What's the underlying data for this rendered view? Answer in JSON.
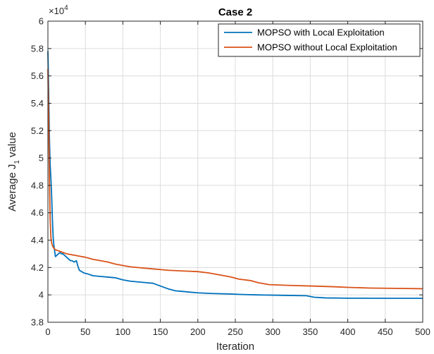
{
  "chart_data": {
    "type": "line",
    "title": "Case 2",
    "xlabel": "Iteration",
    "ylabel_main": "Average J",
    "ylabel_sub": "1",
    "ylabel_tail": " value",
    "y_exponent_base": "×10",
    "y_exponent_power": "4",
    "xlim": [
      0,
      500
    ],
    "ylim": [
      3.8,
      6.0
    ],
    "x_ticks": [
      0,
      50,
      100,
      150,
      200,
      250,
      300,
      350,
      400,
      450,
      500
    ],
    "x_tick_labels": [
      "0",
      "50",
      "100",
      "150",
      "200",
      "250",
      "300",
      "350",
      "400",
      "450",
      "500"
    ],
    "y_ticks": [
      3.8,
      4.0,
      4.2,
      4.4,
      4.6,
      4.8,
      5.0,
      5.2,
      5.4,
      5.6,
      5.8,
      6.0
    ],
    "y_tick_labels": [
      "3.8",
      "4",
      "4.2",
      "4.4",
      "4.6",
      "4.8",
      "5",
      "5.2",
      "5.4",
      "5.6",
      "5.8",
      "6"
    ],
    "grid": true,
    "legend_position": "top-right",
    "series": [
      {
        "name": "MOPSO with Local Exploitation",
        "color": "#0072BD",
        "points": [
          [
            0,
            5.78
          ],
          [
            1,
            5.5
          ],
          [
            2,
            5.15
          ],
          [
            3,
            4.95
          ],
          [
            4,
            4.85
          ],
          [
            5,
            4.72
          ],
          [
            6,
            4.55
          ],
          [
            7,
            4.42
          ],
          [
            8,
            4.36
          ],
          [
            9,
            4.32
          ],
          [
            10,
            4.28
          ],
          [
            12,
            4.29
          ],
          [
            14,
            4.3
          ],
          [
            16,
            4.31
          ],
          [
            18,
            4.3
          ],
          [
            20,
            4.3
          ],
          [
            22,
            4.29
          ],
          [
            24,
            4.28
          ],
          [
            26,
            4.27
          ],
          [
            28,
            4.26
          ],
          [
            30,
            4.25
          ],
          [
            32,
            4.25
          ],
          [
            35,
            4.24
          ],
          [
            38,
            4.25
          ],
          [
            40,
            4.21
          ],
          [
            42,
            4.18
          ],
          [
            45,
            4.17
          ],
          [
            48,
            4.16
          ],
          [
            52,
            4.155
          ],
          [
            55,
            4.15
          ],
          [
            60,
            4.14
          ],
          [
            70,
            4.135
          ],
          [
            80,
            4.13
          ],
          [
            90,
            4.125
          ],
          [
            100,
            4.11
          ],
          [
            110,
            4.1
          ],
          [
            120,
            4.095
          ],
          [
            130,
            4.09
          ],
          [
            140,
            4.085
          ],
          [
            150,
            4.065
          ],
          [
            160,
            4.045
          ],
          [
            170,
            4.03
          ],
          [
            180,
            4.025
          ],
          [
            190,
            4.02
          ],
          [
            200,
            4.015
          ],
          [
            220,
            4.01
          ],
          [
            240,
            4.007
          ],
          [
            260,
            4.003
          ],
          [
            280,
            4.0
          ],
          [
            300,
            3.998
          ],
          [
            320,
            3.996
          ],
          [
            345,
            3.994
          ],
          [
            355,
            3.983
          ],
          [
            370,
            3.978
          ],
          [
            400,
            3.976
          ],
          [
            450,
            3.975
          ],
          [
            500,
            3.975
          ]
        ]
      },
      {
        "name": "MOPSO without Local Exploitation",
        "color": "#D95319",
        "points": [
          [
            0,
            5.65
          ],
          [
            1,
            5.3
          ],
          [
            2,
            4.85
          ],
          [
            3,
            4.55
          ],
          [
            4,
            4.42
          ],
          [
            5,
            4.38
          ],
          [
            6,
            4.36
          ],
          [
            8,
            4.34
          ],
          [
            10,
            4.33
          ],
          [
            15,
            4.32
          ],
          [
            20,
            4.31
          ],
          [
            25,
            4.3
          ],
          [
            30,
            4.295
          ],
          [
            40,
            4.285
          ],
          [
            50,
            4.275
          ],
          [
            60,
            4.26
          ],
          [
            70,
            4.25
          ],
          [
            80,
            4.24
          ],
          [
            90,
            4.225
          ],
          [
            100,
            4.215
          ],
          [
            110,
            4.205
          ],
          [
            120,
            4.2
          ],
          [
            130,
            4.195
          ],
          [
            140,
            4.19
          ],
          [
            150,
            4.185
          ],
          [
            160,
            4.18
          ],
          [
            180,
            4.175
          ],
          [
            200,
            4.17
          ],
          [
            215,
            4.16
          ],
          [
            230,
            4.145
          ],
          [
            245,
            4.13
          ],
          [
            255,
            4.115
          ],
          [
            270,
            4.105
          ],
          [
            280,
            4.09
          ],
          [
            295,
            4.075
          ],
          [
            320,
            4.07
          ],
          [
            350,
            4.065
          ],
          [
            380,
            4.06
          ],
          [
            400,
            4.055
          ],
          [
            430,
            4.05
          ],
          [
            460,
            4.048
          ],
          [
            500,
            4.045
          ]
        ]
      }
    ]
  }
}
